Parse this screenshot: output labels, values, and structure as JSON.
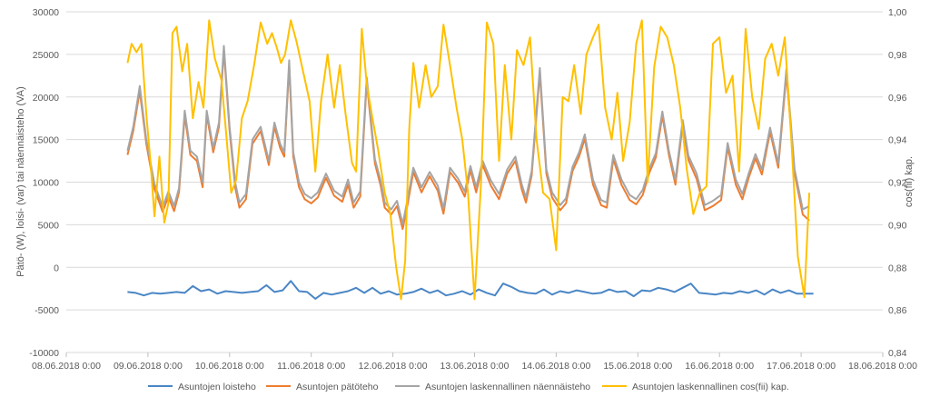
{
  "chart_data": {
    "type": "line",
    "ylabel": "Pätö- (W), loisi- (var) tai näennäisteho (VA)",
    "y2label": "cos(fii) kap.",
    "ylim": [
      -10000,
      30000
    ],
    "y2lim": [
      0.84,
      1.0
    ],
    "xlim": [
      0,
      10
    ],
    "grid": true,
    "legend_position": "bottom",
    "y_ticks": [
      "30000",
      "25000",
      "20000",
      "15000",
      "10000",
      "5000",
      "0",
      "-5000",
      "-10000"
    ],
    "y2_ticks": [
      "1,00",
      "0,98",
      "0,96",
      "0,94",
      "0,92",
      "0,90",
      "0,88",
      "0,86",
      "0,84"
    ],
    "x_ticks": [
      "08.06.2018 0:00",
      "09.06.2018 0:00",
      "10.06.2018 0:00",
      "11.06.2018 0:00",
      "12.06.2018 0:00",
      "13.06.2018 0:00",
      "14.06.2018 0:00",
      "15.06.2018 0:00",
      "16.06.2018 0:00",
      "17.06.2018 0:00",
      "18.06.2018 0:00"
    ],
    "series": [
      {
        "name": "Asuntojen loisteho",
        "color": "#4a86c5",
        "axis": "left",
        "x": [
          0.75,
          0.85,
          0.95,
          1.05,
          1.15,
          1.25,
          1.35,
          1.45,
          1.55,
          1.65,
          1.75,
          1.85,
          1.95,
          2.05,
          2.15,
          2.25,
          2.35,
          2.45,
          2.55,
          2.65,
          2.75,
          2.85,
          2.95,
          3.05,
          3.15,
          3.25,
          3.35,
          3.45,
          3.55,
          3.65,
          3.75,
          3.85,
          3.95,
          4.05,
          4.15,
          4.25,
          4.35,
          4.45,
          4.55,
          4.65,
          4.75,
          4.85,
          4.95,
          5.05,
          5.15,
          5.25,
          5.35,
          5.45,
          5.55,
          5.65,
          5.75,
          5.85,
          5.95,
          6.05,
          6.15,
          6.25,
          6.35,
          6.45,
          6.55,
          6.65,
          6.75,
          6.85,
          6.95,
          7.05,
          7.15,
          7.25,
          7.35,
          7.45,
          7.55,
          7.65,
          7.75,
          7.85,
          7.95,
          8.05,
          8.15,
          8.25,
          8.35,
          8.45,
          8.55,
          8.65,
          8.75,
          8.85,
          8.95,
          9.05,
          9.15
        ],
        "y": [
          -2900,
          -3000,
          -3300,
          -3000,
          -3100,
          -3000,
          -2900,
          -3000,
          -2200,
          -2800,
          -2600,
          -3100,
          -2800,
          -2900,
          -3000,
          -2900,
          -2800,
          -2100,
          -2900,
          -2700,
          -1600,
          -2800,
          -2900,
          -3700,
          -3000,
          -3200,
          -3000,
          -2800,
          -2400,
          -3000,
          -2400,
          -3100,
          -2800,
          -3200,
          -3100,
          -2900,
          -2500,
          -3000,
          -2700,
          -3300,
          -3100,
          -2800,
          -3200,
          -2600,
          -3000,
          -3300,
          -1900,
          -2300,
          -2800,
          -3000,
          -3100,
          -2600,
          -3200,
          -2800,
          -3000,
          -2700,
          -2900,
          -3100,
          -3000,
          -2600,
          -2900,
          -2800,
          -3400,
          -2700,
          -2800,
          -2400,
          -2600,
          -2900,
          -2400,
          -1900,
          -3000,
          -3100,
          -3200,
          -3000,
          -3100,
          -2800,
          -3000,
          -2700,
          -3200,
          -2600,
          -3000,
          -2700,
          -3100,
          -3100,
          -3100
        ]
      },
      {
        "name": "Asuntojen pätöteho",
        "color": "#ed7d31",
        "axis": "left",
        "x": [
          0.75,
          0.82,
          0.9,
          0.98,
          1.08,
          1.18,
          1.25,
          1.32,
          1.38,
          1.45,
          1.52,
          1.6,
          1.67,
          1.72,
          1.8,
          1.87,
          1.93,
          2.0,
          2.07,
          2.12,
          2.2,
          2.28,
          2.38,
          2.48,
          2.55,
          2.62,
          2.67,
          2.73,
          2.78,
          2.85,
          2.92,
          3.0,
          3.08,
          3.18,
          3.28,
          3.38,
          3.45,
          3.52,
          3.6,
          3.68,
          3.78,
          3.85,
          3.9,
          3.98,
          4.05,
          4.12,
          4.18,
          4.25,
          4.35,
          4.45,
          4.55,
          4.62,
          4.7,
          4.8,
          4.88,
          4.95,
          5.02,
          5.1,
          5.2,
          5.3,
          5.4,
          5.5,
          5.58,
          5.63,
          5.7,
          5.8,
          5.88,
          5.95,
          6.05,
          6.12,
          6.2,
          6.28,
          6.35,
          6.45,
          6.55,
          6.62,
          6.7,
          6.8,
          6.9,
          6.98,
          7.06,
          7.14,
          7.22,
          7.3,
          7.38,
          7.46,
          7.55,
          7.62,
          7.72,
          7.82,
          7.92,
          8.02,
          8.1,
          8.2,
          8.28,
          8.36,
          8.44,
          8.52,
          8.62,
          8.72,
          8.82,
          8.92,
          9.02,
          9.1
        ],
        "y": [
          13200,
          16000,
          20700,
          14500,
          9200,
          6500,
          8300,
          6600,
          8800,
          17800,
          13200,
          12500,
          9400,
          17900,
          13500,
          16500,
          25500,
          16000,
          9300,
          7000,
          8000,
          14500,
          16000,
          12000,
          16500,
          14000,
          13000,
          23700,
          13000,
          9400,
          8000,
          7500,
          8200,
          10500,
          8400,
          7700,
          9700,
          7000,
          8300,
          21800,
          12200,
          9600,
          7000,
          6200,
          7200,
          4500,
          7400,
          11200,
          8800,
          10700,
          9000,
          6300,
          11200,
          9900,
          8300,
          11400,
          8800,
          12000,
          9600,
          8000,
          11000,
          12500,
          9100,
          7600,
          10800,
          22800,
          11000,
          8200,
          6700,
          7500,
          11300,
          13000,
          15100,
          9700,
          7300,
          7000,
          12700,
          9700,
          7900,
          7400,
          8500,
          11100,
          12900,
          17800,
          13200,
          9700,
          16800,
          12600,
          10400,
          6700,
          7200,
          7900,
          14100,
          9700,
          8000,
          10600,
          12800,
          10900,
          15900,
          11700,
          22700,
          11000,
          6200,
          5500
        ]
      },
      {
        "name": "Asuntojen laskennallinen näennäisteho",
        "color": "#a5a5a5",
        "axis": "left",
        "x": [
          0.75,
          0.82,
          0.9,
          0.98,
          1.08,
          1.18,
          1.25,
          1.32,
          1.38,
          1.45,
          1.52,
          1.6,
          1.67,
          1.72,
          1.8,
          1.87,
          1.93,
          2.0,
          2.07,
          2.12,
          2.2,
          2.28,
          2.38,
          2.48,
          2.55,
          2.62,
          2.67,
          2.73,
          2.78,
          2.85,
          2.92,
          3.0,
          3.08,
          3.18,
          3.28,
          3.38,
          3.45,
          3.52,
          3.6,
          3.68,
          3.78,
          3.85,
          3.9,
          3.98,
          4.05,
          4.12,
          4.18,
          4.25,
          4.35,
          4.45,
          4.55,
          4.62,
          4.7,
          4.8,
          4.88,
          4.95,
          5.02,
          5.1,
          5.2,
          5.3,
          5.4,
          5.5,
          5.58,
          5.63,
          5.7,
          5.8,
          5.88,
          5.95,
          6.05,
          6.12,
          6.2,
          6.28,
          6.35,
          6.45,
          6.55,
          6.62,
          6.7,
          6.8,
          6.9,
          6.98,
          7.06,
          7.14,
          7.22,
          7.3,
          7.38,
          7.46,
          7.55,
          7.62,
          7.72,
          7.82,
          7.92,
          8.02,
          8.1,
          8.2,
          8.28,
          8.36,
          8.44,
          8.52,
          8.62,
          8.72,
          8.82,
          8.92,
          9.02,
          9.1
        ],
        "y": [
          13700,
          16500,
          21300,
          15000,
          9800,
          7100,
          8900,
          7200,
          9300,
          18400,
          13700,
          13000,
          10000,
          18400,
          14000,
          17000,
          26000,
          16500,
          9900,
          7600,
          8600,
          15000,
          16500,
          12500,
          17000,
          14500,
          13500,
          24300,
          13500,
          10000,
          8600,
          8100,
          8800,
          11000,
          9000,
          8300,
          10300,
          7600,
          8900,
          22300,
          12700,
          10200,
          7600,
          6800,
          7800,
          5100,
          8000,
          11700,
          9400,
          11200,
          9600,
          6900,
          11700,
          10400,
          8900,
          11900,
          9400,
          12500,
          10200,
          8600,
          11500,
          13000,
          9700,
          8200,
          11300,
          23400,
          11500,
          8800,
          7300,
          8100,
          11800,
          13500,
          15600,
          10300,
          7900,
          7600,
          13200,
          10300,
          8500,
          8000,
          9100,
          11600,
          13400,
          18300,
          13700,
          10300,
          17300,
          13100,
          11000,
          7300,
          7800,
          8500,
          14600,
          10300,
          8600,
          11100,
          13300,
          11500,
          16400,
          12200,
          23300,
          11500,
          6800,
          7200
        ]
      },
      {
        "name": "Asuntojen laskennallinen cos(fii) kap.",
        "color": "#ffc000",
        "axis": "right",
        "x": [
          0.75,
          0.8,
          0.86,
          0.92,
          0.98,
          1.03,
          1.08,
          1.14,
          1.2,
          1.25,
          1.3,
          1.35,
          1.42,
          1.48,
          1.55,
          1.62,
          1.68,
          1.75,
          1.82,
          1.9,
          1.96,
          2.02,
          2.08,
          2.15,
          2.22,
          2.3,
          2.38,
          2.46,
          2.52,
          2.58,
          2.63,
          2.68,
          2.75,
          2.82,
          2.9,
          2.98,
          3.05,
          3.12,
          3.2,
          3.28,
          3.35,
          3.42,
          3.5,
          3.55,
          3.62,
          3.68,
          3.75,
          3.82,
          3.9,
          3.97,
          4.04,
          4.1,
          4.15,
          4.2,
          4.25,
          4.32,
          4.4,
          4.47,
          4.55,
          4.62,
          4.7,
          4.78,
          4.85,
          4.92,
          5.0,
          5.08,
          5.15,
          5.23,
          5.3,
          5.37,
          5.45,
          5.52,
          5.6,
          5.68,
          5.76,
          5.84,
          5.92,
          6.0,
          6.08,
          6.15,
          6.22,
          6.3,
          6.37,
          6.45,
          6.52,
          6.6,
          6.68,
          6.75,
          6.82,
          6.9,
          6.98,
          7.05,
          7.12,
          7.2,
          7.28,
          7.36,
          7.44,
          7.52,
          7.6,
          7.68,
          7.76,
          7.84,
          7.92,
          8.0,
          8.08,
          8.16,
          8.24,
          8.32,
          8.4,
          8.48,
          8.56,
          8.64,
          8.72,
          8.8,
          8.88,
          8.96,
          9.04,
          9.1
        ],
        "y": [
          0.976,
          0.985,
          0.981,
          0.985,
          0.952,
          0.93,
          0.904,
          0.932,
          0.901,
          0.91,
          0.99,
          0.993,
          0.972,
          0.985,
          0.95,
          0.967,
          0.955,
          0.996,
          0.978,
          0.968,
          0.942,
          0.915,
          0.921,
          0.95,
          0.958,
          0.975,
          0.995,
          0.985,
          0.99,
          0.983,
          0.976,
          0.98,
          0.996,
          0.986,
          0.972,
          0.958,
          0.925,
          0.958,
          0.98,
          0.955,
          0.975,
          0.952,
          0.929,
          0.925,
          0.992,
          0.966,
          0.95,
          0.935,
          0.915,
          0.905,
          0.88,
          0.865,
          0.883,
          0.945,
          0.976,
          0.955,
          0.975,
          0.96,
          0.965,
          0.994,
          0.975,
          0.955,
          0.94,
          0.915,
          0.865,
          0.92,
          0.995,
          0.985,
          0.93,
          0.975,
          0.94,
          0.982,
          0.975,
          0.988,
          0.94,
          0.915,
          0.912,
          0.888,
          0.96,
          0.958,
          0.975,
          0.952,
          0.98,
          0.988,
          0.994,
          0.955,
          0.94,
          0.962,
          0.93,
          0.948,
          0.985,
          0.996,
          0.92,
          0.974,
          0.993,
          0.988,
          0.975,
          0.955,
          0.926,
          0.905,
          0.915,
          0.918,
          0.985,
          0.988,
          0.962,
          0.97,
          0.925,
          0.992,
          0.96,
          0.945,
          0.978,
          0.985,
          0.97,
          0.988,
          0.94,
          0.885,
          0.866,
          0.915
        ]
      }
    ]
  }
}
